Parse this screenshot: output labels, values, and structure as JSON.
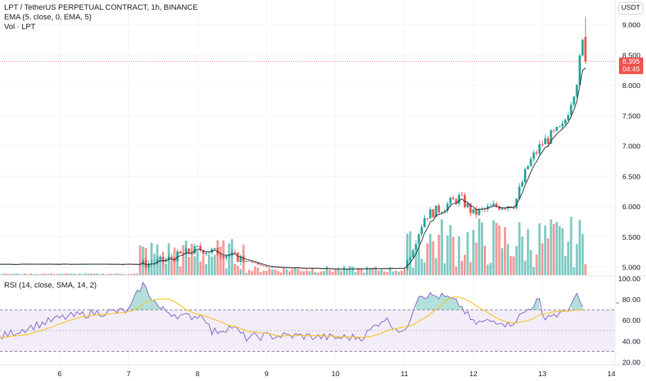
{
  "header": {
    "symbol_line": "LPT / TetherUS PERPETUAL CONTRACT, 1h, BINANCE",
    "ema_line": "EMA (5, close, 0, EMA, 5)",
    "vol_line": "Vol · LPT",
    "rsi_line": "RSI (14, close, SMA, 14, 2)",
    "currency_button": "USDT"
  },
  "last_price": {
    "value": "8.395",
    "countdown": "04:45"
  },
  "colors": {
    "up": "#26a69a",
    "down": "#ef5350",
    "ema": "#1e222d",
    "rsi": "#7e57c2",
    "rsi_ma": "#f5c518",
    "rsi_band": "#ede7f6"
  },
  "chart_data": {
    "type": "candlestick",
    "x_tick_labels": [
      "6",
      "7",
      "8",
      "9",
      "10",
      "11",
      "12",
      "13",
      "14"
    ],
    "price_axis": {
      "ticks": [
        "5.000",
        "5.500",
        "6.000",
        "6.500",
        "7.000",
        "7.500",
        "8.000",
        "8.500",
        "9.000"
      ],
      "ylim": [
        4.87,
        9.18
      ]
    },
    "rsi_axis": {
      "ticks": [
        "20.00",
        "40.00",
        "60.00",
        "80.00",
        "100.00"
      ],
      "ylim": [
        17,
        102
      ],
      "upper_band": 70,
      "middle": 50,
      "lower_band": 30
    },
    "keypoints": [
      {
        "day": 7.25,
        "price": 5.05
      },
      {
        "day": 7.5,
        "price": 5.1
      },
      {
        "day": 8.0,
        "price": 5.3
      },
      {
        "day": 8.4,
        "price": 5.22
      },
      {
        "day": 9.0,
        "price": 5.0
      },
      {
        "day": 10.0,
        "price": 4.97
      },
      {
        "day": 11.0,
        "price": 4.98
      },
      {
        "day": 11.3,
        "price": 5.85
      },
      {
        "day": 11.5,
        "price": 5.95
      },
      {
        "day": 11.8,
        "price": 6.15
      },
      {
        "day": 12.0,
        "price": 5.88
      },
      {
        "day": 12.3,
        "price": 6.0
      },
      {
        "day": 12.6,
        "price": 6.05
      },
      {
        "day": 12.8,
        "price": 6.7
      },
      {
        "day": 13.0,
        "price": 7.05
      },
      {
        "day": 13.3,
        "price": 7.3
      },
      {
        "day": 13.5,
        "price": 8.1
      },
      {
        "day": 13.6,
        "price": 8.8
      },
      {
        "day": 13.65,
        "price": 8.395
      }
    ],
    "rsi_keypoints": [
      {
        "day": 5.1,
        "rsi": 43
      },
      {
        "day": 5.5,
        "rsi": 52
      },
      {
        "day": 6.0,
        "rsi": 62
      },
      {
        "day": 6.5,
        "rsi": 67
      },
      {
        "day": 7.0,
        "rsi": 69
      },
      {
        "day": 7.2,
        "rsi": 95
      },
      {
        "day": 7.45,
        "rsi": 71
      },
      {
        "day": 7.8,
        "rsi": 63
      },
      {
        "day": 8.1,
        "rsi": 65
      },
      {
        "day": 8.2,
        "rsi": 48
      },
      {
        "day": 8.5,
        "rsi": 54
      },
      {
        "day": 8.7,
        "rsi": 43
      },
      {
        "day": 9.0,
        "rsi": 45
      },
      {
        "day": 9.5,
        "rsi": 45
      },
      {
        "day": 10.0,
        "rsi": 43
      },
      {
        "day": 10.4,
        "rsi": 44
      },
      {
        "day": 10.7,
        "rsi": 62
      },
      {
        "day": 11.0,
        "rsi": 47
      },
      {
        "day": 11.2,
        "rsi": 85
      },
      {
        "day": 11.6,
        "rsi": 82
      },
      {
        "day": 11.8,
        "rsi": 75
      },
      {
        "day": 12.0,
        "rsi": 57
      },
      {
        "day": 12.4,
        "rsi": 60
      },
      {
        "day": 12.5,
        "rsi": 55
      },
      {
        "day": 12.7,
        "rsi": 65
      },
      {
        "day": 12.95,
        "rsi": 80
      },
      {
        "day": 13.0,
        "rsi": 64
      },
      {
        "day": 13.3,
        "rsi": 66
      },
      {
        "day": 13.5,
        "rsi": 82
      },
      {
        "day": 13.62,
        "rsi": 69
      }
    ]
  }
}
